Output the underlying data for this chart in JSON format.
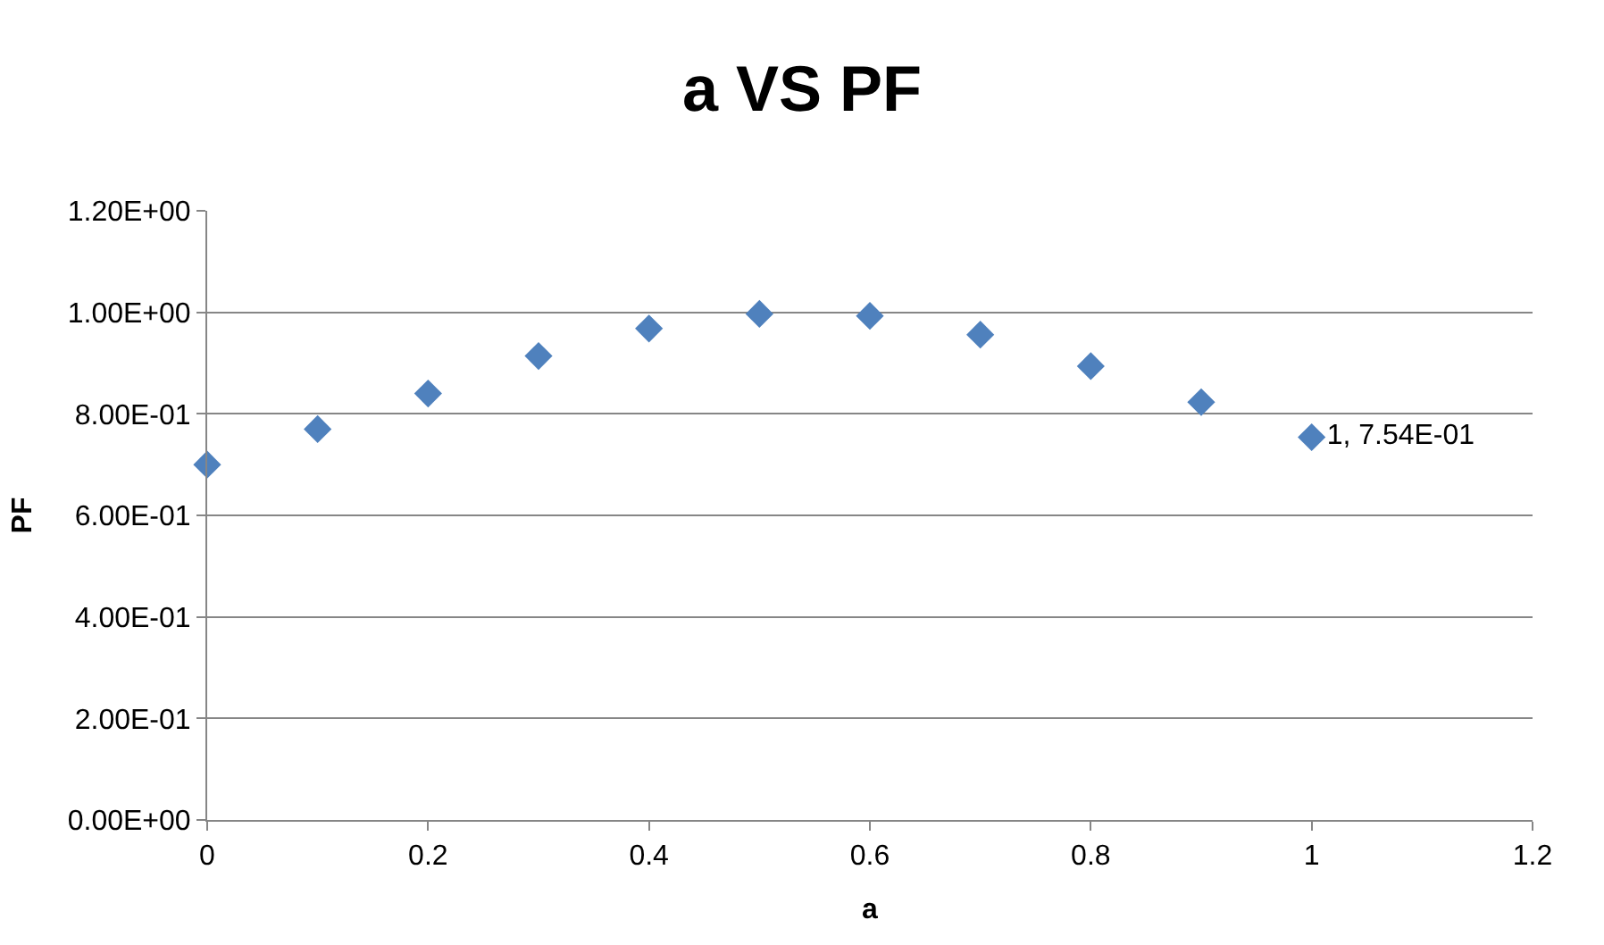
{
  "chart_data": {
    "type": "scatter",
    "title": "a VS PF",
    "xlabel": "a",
    "ylabel": "PF",
    "x": [
      0,
      0.1,
      0.2,
      0.3,
      0.4,
      0.5,
      0.6,
      0.7,
      0.8,
      0.9,
      1
    ],
    "series": [
      {
        "color": "#4f81bd",
        "values": [
          0.7,
          0.77,
          0.84,
          0.914,
          0.968,
          0.997,
          0.993,
          0.956,
          0.894,
          0.823,
          0.754
        ],
        "value_labels": [
          null,
          null,
          null,
          null,
          null,
          null,
          null,
          null,
          null,
          null,
          "1, 7.54E-01"
        ]
      }
    ],
    "xlim": [
      0,
      1.2
    ],
    "xticks": [
      0,
      0.2,
      0.4,
      0.6,
      0.8,
      1,
      1.2
    ],
    "ylim": [
      0,
      1.2
    ],
    "yticks": [
      {
        "value": 0,
        "label": "0.00E+00"
      },
      {
        "value": 0.2,
        "label": "2.00E-01"
      },
      {
        "value": 0.4,
        "label": "4.00E-01"
      },
      {
        "value": 0.6,
        "label": "6.00E-01"
      },
      {
        "value": 0.8,
        "label": "8.00E-01"
      },
      {
        "value": 1.0,
        "label": "1.00E+00"
      },
      {
        "value": 1.2,
        "label": "1.20E+00"
      }
    ],
    "grid": "y",
    "marker": "diamond"
  }
}
